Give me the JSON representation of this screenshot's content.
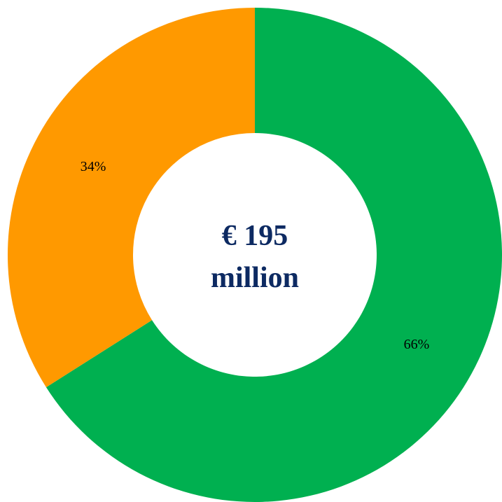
{
  "chart_data": {
    "type": "pie",
    "donut": true,
    "center_text": {
      "line1": "€ 195",
      "line2": "million",
      "color": "#0d2a62"
    },
    "slices": [
      {
        "value": 66,
        "label": "66%",
        "color": "#00b050"
      },
      {
        "value": 34,
        "label": "34%",
        "color": "#ff9900"
      }
    ],
    "start_position": "12 o'clock",
    "direction": "clockwise"
  }
}
